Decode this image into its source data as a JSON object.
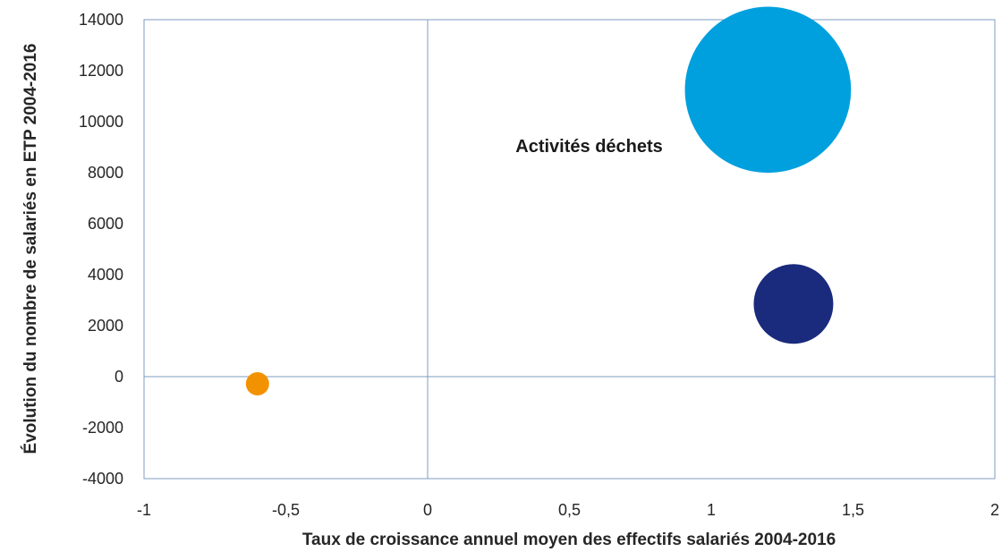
{
  "chart_data": {
    "type": "bubble",
    "xlabel": "Taux de croissance annuel moyen des effectifs salariés 2004-2016",
    "ylabel": "Évolution du nombre de salariés en ETP 2004-2016",
    "xlim": [
      -1,
      2
    ],
    "ylim": [
      -4000,
      14000
    ],
    "x_ticks": [
      -1,
      -0.5,
      0,
      0.5,
      1,
      1.5,
      2
    ],
    "x_tick_labels": [
      "-1",
      "-0,5",
      "0",
      "0,5",
      "1",
      "1,5",
      "2"
    ],
    "y_ticks": [
      -4000,
      -2000,
      0,
      2000,
      4000,
      6000,
      8000,
      10000,
      12000,
      14000
    ],
    "y_tick_labels": [
      "-4000",
      "-2000",
      "0",
      "2000",
      "4000",
      "6000",
      "8000",
      "10000",
      "12000",
      "14000"
    ],
    "grid": false,
    "points": [
      {
        "x": -0.6,
        "y": -280,
        "size": 1,
        "color": "#f39200"
      },
      {
        "x": 1.29,
        "y": 2850,
        "size": 11.7,
        "color": "#1a2a7c"
      },
      {
        "x": 1.2,
        "y": 11250,
        "size": 51,
        "color": "#00a0de"
      }
    ],
    "annotations": [
      {
        "text": "Activités déchets",
        "x": 0.31,
        "y": 8800
      }
    ]
  }
}
